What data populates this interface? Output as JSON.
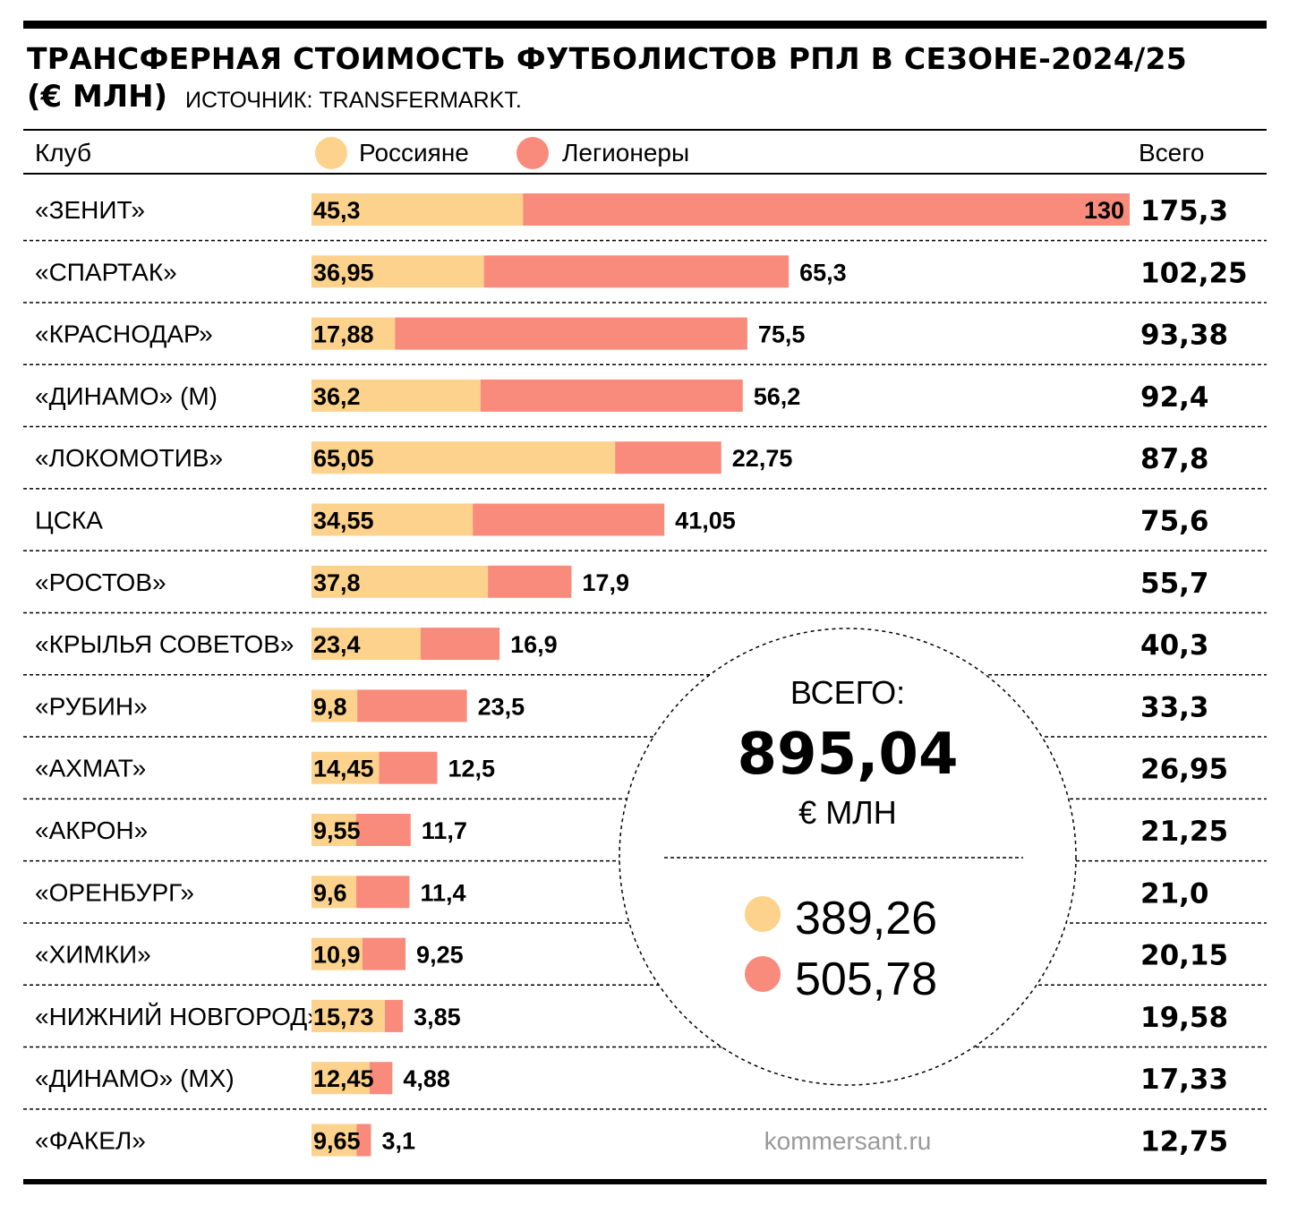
{
  "header": {
    "title": "ТРАНСФЕРНАЯ СТОИМОСТЬ ФУТБОЛИСТОВ РПЛ В СЕЗОНЕ-2024/25",
    "unit": "(€ МЛН)",
    "source": "ИСТОЧНИК: TRANSFERMARKT."
  },
  "columns": {
    "club": "Клуб",
    "total": "Всего"
  },
  "legend": [
    {
      "name": "Россияне",
      "color": "#fdd28c"
    },
    {
      "name": "Легионеры",
      "color": "#f98b7c"
    }
  ],
  "chart_data": {
    "type": "bar",
    "orientation": "horizontal",
    "stacked": true,
    "categories": [
      "«ЗЕНИТ»",
      "«СПАРТАК»",
      "«КРАСНОДАР»",
      "«ДИНАМО» (М)",
      "«ЛОКОМОТИВ»",
      "ЦСКА",
      "«РОСТОВ»",
      "«КРЫЛЬЯ СОВЕТОВ»",
      "«РУБИН»",
      "«АХМАТ»",
      "«АКРОН»",
      "«ОРЕНБУРГ»",
      "«ХИМКИ»",
      "«НИЖНИЙ НОВГОРОД»",
      "«ДИНАМО» (МХ)",
      "«ФАКЕЛ»"
    ],
    "series": [
      {
        "name": "Россияне",
        "color": "#fdd28c",
        "values": [
          45.3,
          36.95,
          17.88,
          36.2,
          65.05,
          34.55,
          37.8,
          23.4,
          9.8,
          14.45,
          9.55,
          9.6,
          10.9,
          15.73,
          12.45,
          9.65
        ],
        "labels": [
          "45,3",
          "36,95",
          "17,88",
          "36,2",
          "65,05",
          "34,55",
          "37,8",
          "23,4",
          "9,8",
          "14,45",
          "9,55",
          "9,6",
          "10,9",
          "15,73",
          "12,45",
          "9,65"
        ]
      },
      {
        "name": "Легионеры",
        "color": "#f98b7c",
        "values": [
          130,
          65.3,
          75.5,
          56.2,
          22.75,
          41.05,
          17.9,
          16.9,
          23.5,
          12.5,
          11.7,
          11.4,
          9.25,
          3.85,
          4.88,
          3.1
        ],
        "labels": [
          "130",
          "65,3",
          "75,5",
          "56,2",
          "22,75",
          "41,05",
          "17,9",
          "16,9",
          "23,5",
          "12,5",
          "11,7",
          "11,4",
          "9,25",
          "3,85",
          "4,88",
          "3,1"
        ]
      }
    ],
    "totals": [
      175.3,
      102.25,
      93.38,
      92.4,
      87.8,
      75.6,
      55.7,
      40.3,
      33.3,
      26.95,
      21.25,
      21.0,
      20.15,
      19.58,
      17.33,
      12.75
    ],
    "total_labels": [
      "175,3",
      "102,25",
      "93,38",
      "92,4",
      "87,8",
      "75,6",
      "55,7",
      "40,3",
      "33,3",
      "26,95",
      "21,25",
      "21,0",
      "20,15",
      "19,58",
      "17,33",
      "12,75"
    ],
    "xlim": [
      0,
      175.3
    ],
    "grid": false,
    "legend_position": "top"
  },
  "summary": {
    "label": "ВСЕГО:",
    "total": "895,04",
    "unit": "€ МЛН",
    "russians": "389,26",
    "legionnaires": "505,78"
  },
  "footer": {
    "credit": "kommersant.ru"
  }
}
